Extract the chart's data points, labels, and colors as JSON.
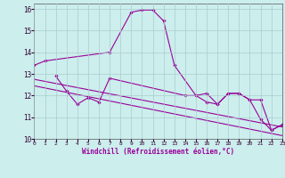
{
  "xlabel": "Windchill (Refroidissement éolien,°C)",
  "bg_color": "#cceeed",
  "grid_color": "#aacccc",
  "line_color": "#990099",
  "temp_x": [
    0,
    1,
    7,
    9,
    10,
    11,
    12,
    13,
    15,
    16,
    17,
    18,
    19,
    20,
    21,
    22,
    23
  ],
  "temp_y": [
    13.4,
    13.6,
    14.0,
    15.85,
    15.95,
    15.95,
    15.45,
    13.4,
    12.0,
    12.1,
    11.6,
    12.1,
    12.1,
    11.8,
    11.8,
    10.4,
    10.65
  ],
  "wc_x": [
    2,
    3,
    4,
    5,
    6,
    7,
    14,
    15,
    16,
    17,
    18,
    19,
    20,
    21,
    22,
    23
  ],
  "wc_y": [
    12.9,
    12.2,
    11.6,
    11.9,
    11.7,
    12.8,
    12.0,
    12.0,
    11.7,
    11.6,
    12.1,
    12.1,
    11.8,
    10.9,
    10.4,
    10.65
  ],
  "trend1_x": [
    0,
    23
  ],
  "trend1_y": [
    12.75,
    10.55
  ],
  "trend2_x": [
    0,
    23
  ],
  "trend2_y": [
    12.45,
    10.15
  ],
  "ylim": [
    10,
    16.25
  ],
  "xlim": [
    0,
    23
  ],
  "yticks": [
    10,
    11,
    12,
    13,
    14,
    15,
    16
  ],
  "xticks": [
    0,
    1,
    2,
    3,
    4,
    5,
    6,
    7,
    8,
    9,
    10,
    11,
    12,
    13,
    14,
    15,
    16,
    17,
    18,
    19,
    20,
    21,
    22,
    23
  ]
}
